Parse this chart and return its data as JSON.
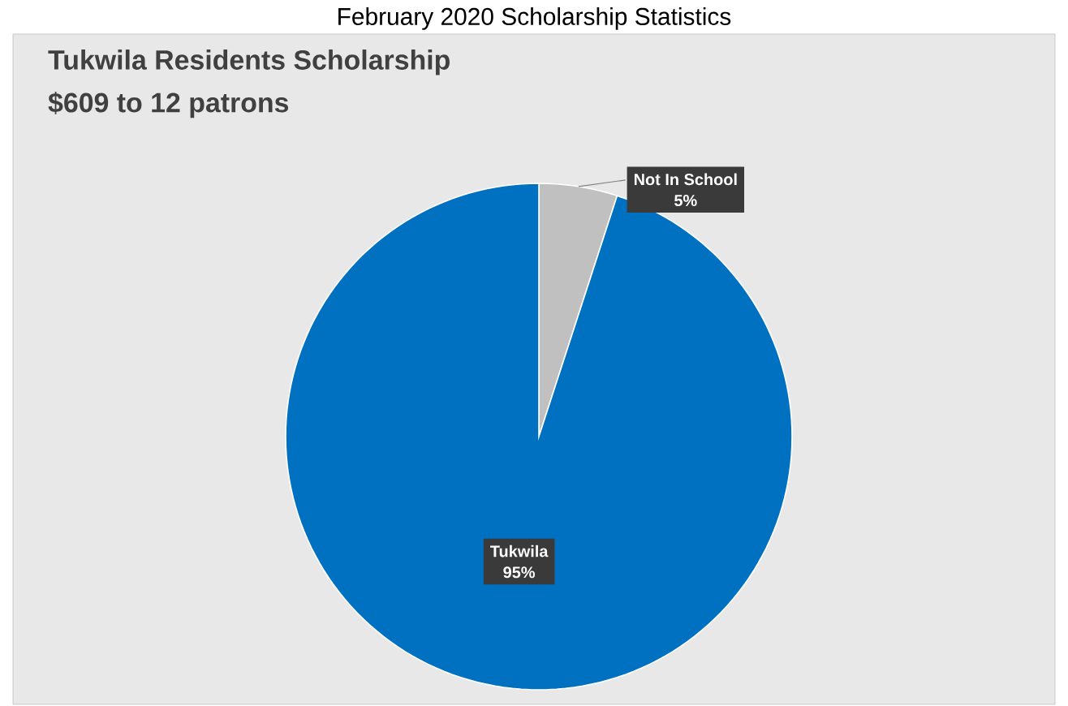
{
  "chart_data": {
    "type": "pie",
    "title": "February 2020 Scholarship Statistics",
    "subtitle": "Tukwila Residents Scholarship",
    "annotations": [
      "$609 to 12 patrons"
    ],
    "categories": [
      "Not In School",
      "Tukwila"
    ],
    "values": [
      5,
      95
    ],
    "colors": [
      "#c0c0c0",
      "#0070c0"
    ],
    "value_labels": [
      "5%",
      "95%"
    ]
  }
}
